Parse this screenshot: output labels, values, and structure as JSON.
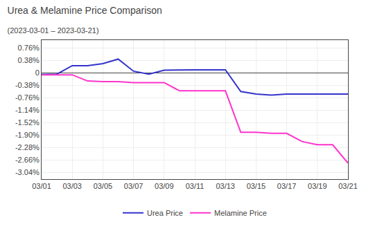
{
  "chart_data": {
    "type": "line",
    "title": "Urea & Melamine Price Comparison",
    "subtitle": "(2023-03-01 – 2023-03-21)",
    "categories": [
      "03/01",
      null,
      "03/03",
      null,
      "03/05",
      null,
      "03/07",
      null,
      "03/09",
      null,
      "03/11",
      null,
      "03/13",
      null,
      "03/15",
      null,
      "03/17",
      null,
      "03/19",
      null,
      "03/21"
    ],
    "series": [
      {
        "name": "Urea Price",
        "color": "#3333cc",
        "values": [
          -0.05,
          -0.04,
          0.22,
          0.22,
          0.28,
          0.42,
          0.05,
          -0.04,
          0.08,
          0.09,
          0.09,
          0.09,
          0.09,
          -0.57,
          -0.65,
          -0.68,
          -0.65,
          -0.65,
          -0.65,
          -0.65,
          -0.65
        ]
      },
      {
        "name": "Melamine Price",
        "color": "#ff33cc",
        "values": [
          -0.06,
          -0.06,
          -0.06,
          -0.25,
          -0.27,
          -0.27,
          -0.3,
          -0.3,
          -0.3,
          -0.55,
          -0.55,
          -0.55,
          -0.55,
          -1.82,
          -1.82,
          -1.85,
          -1.85,
          -2.1,
          -2.2,
          -2.2,
          -2.76
        ]
      }
    ],
    "ylim": [
      -3.25,
      1.0
    ],
    "yticks": [
      {
        "value": 0.76,
        "label": "0.76%"
      },
      {
        "value": 0.38,
        "label": "0.38%"
      },
      0,
      {
        "value": -0.38,
        "label": "-0.38%"
      },
      {
        "value": -0.76,
        "label": "-0.76%"
      },
      {
        "value": -1.14,
        "label": "-1.14%"
      },
      {
        "value": -1.52,
        "label": "-1.52%"
      },
      {
        "value": -1.9,
        "label": "-1.90%"
      },
      {
        "value": -2.28,
        "label": "-2.28%"
      },
      {
        "value": -2.66,
        "label": "-2.66%"
      },
      {
        "value": -3.04,
        "label": "-3.04%"
      }
    ],
    "grid": true,
    "legend": "bottom"
  }
}
